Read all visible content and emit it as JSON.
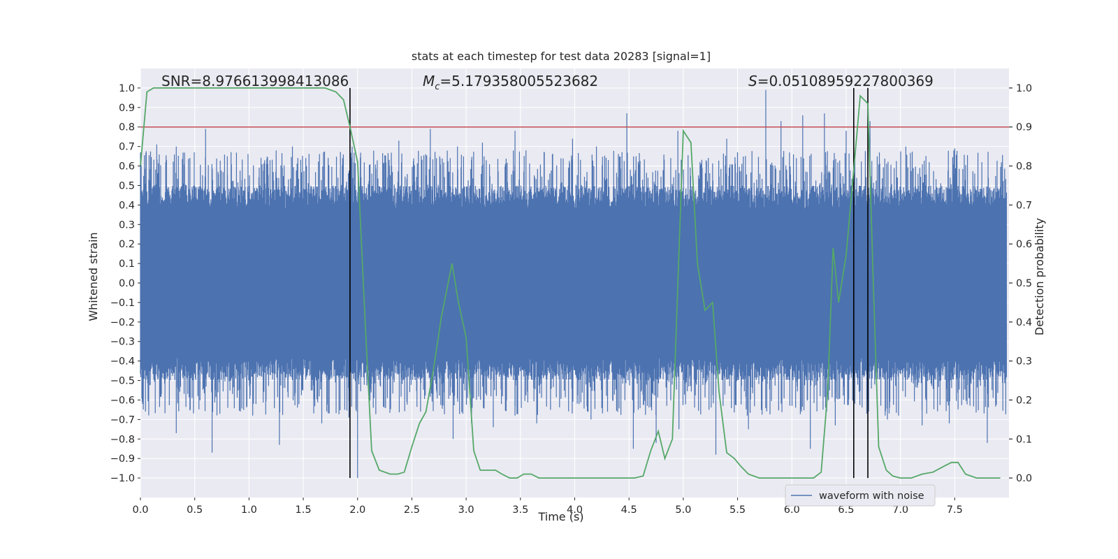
{
  "chart_data": {
    "type": "line",
    "title": "stats at each timestep for test data 20283 [signal=1]",
    "xlabel": "Time (s)",
    "ylabel": "Whitened strain",
    "y2label": "Detection probability",
    "xlim": [
      0.0,
      8.0
    ],
    "ylim": [
      -1.1,
      1.1
    ],
    "y2lim": [
      -0.05,
      1.05
    ],
    "xticks": [
      "0.0",
      "0.5",
      "1.0",
      "1.5",
      "2.0",
      "2.5",
      "3.0",
      "3.5",
      "4.0",
      "4.5",
      "5.0",
      "5.5",
      "6.0",
      "6.5",
      "7.0",
      "7.5"
    ],
    "yticks": [
      "1.0",
      "0.9",
      "0.8",
      "0.7",
      "0.6",
      "0.5",
      "0.4",
      "0.3",
      "0.2",
      "0.1",
      "0.0",
      "−0.1",
      "−0.2",
      "−0.3",
      "−0.4",
      "−0.5",
      "−0.6",
      "−0.7",
      "−0.8",
      "−0.9",
      "−1.0"
    ],
    "y2ticks": [
      "1.0",
      "0.9",
      "0.8",
      "0.7",
      "0.6",
      "0.5",
      "0.4",
      "0.3",
      "0.2",
      "0.1",
      "0.0"
    ],
    "annotations": {
      "snr": "SNR=8.976613998413086",
      "mc_symbol": "M",
      "mc_sub": "c",
      "mc_value": "=5.179358005523682",
      "s_symbol": "S",
      "s_value": "=0.05108959227800369"
    },
    "threshold": {
      "value": 0.8,
      "color": "#c44e52"
    },
    "vertical_lines": [
      1.93,
      6.57,
      6.7
    ],
    "legend": {
      "label": "waveform with noise",
      "position": "lower-right"
    },
    "colors": {
      "waveform": "#4c72b0",
      "probability": "#55a868",
      "threshold": "#c44e52",
      "vlines": "#000000",
      "background": "#eaeaf2",
      "grid": "#ffffff"
    },
    "waveform": {
      "name": "waveform with noise",
      "core_amplitude": 0.38,
      "peaks_upper": [
        [
          0.03,
          0.52
        ],
        [
          0.1,
          0.6
        ],
        [
          0.15,
          0.71
        ],
        [
          0.24,
          0.63
        ],
        [
          0.33,
          0.7
        ],
        [
          0.6,
          0.79
        ],
        [
          0.8,
          0.65
        ],
        [
          1.25,
          0.68
        ],
        [
          1.4,
          0.7
        ],
        [
          1.95,
          0.7
        ],
        [
          2.38,
          0.73
        ],
        [
          2.67,
          0.79
        ],
        [
          2.92,
          0.7
        ],
        [
          3.15,
          0.72
        ],
        [
          3.45,
          0.78
        ],
        [
          3.72,
          0.67
        ],
        [
          3.98,
          0.74
        ],
        [
          4.2,
          0.7
        ],
        [
          4.48,
          0.87
        ],
        [
          4.95,
          0.78
        ],
        [
          5.4,
          0.74
        ],
        [
          5.76,
          0.99
        ],
        [
          5.9,
          0.83
        ],
        [
          6.1,
          0.86
        ],
        [
          6.3,
          0.87
        ],
        [
          6.5,
          0.78
        ],
        [
          6.72,
          0.83
        ],
        [
          7.05,
          0.7
        ],
        [
          7.5,
          0.69
        ],
        [
          7.75,
          0.62
        ]
      ],
      "peaks_lower": [
        [
          0.02,
          -0.62
        ],
        [
          0.33,
          -0.77
        ],
        [
          0.66,
          -0.87
        ],
        [
          1.28,
          -0.83
        ],
        [
          1.67,
          -0.72
        ],
        [
          1.92,
          -0.69
        ],
        [
          2.0,
          -1.0
        ],
        [
          2.88,
          -0.8
        ],
        [
          3.05,
          -0.72
        ],
        [
          3.25,
          -0.74
        ],
        [
          3.45,
          -0.68
        ],
        [
          3.65,
          -0.72
        ],
        [
          4.15,
          -0.7
        ],
        [
          4.54,
          -0.85
        ],
        [
          4.75,
          -0.82
        ],
        [
          4.96,
          -0.75
        ],
        [
          5.3,
          -0.88
        ],
        [
          5.6,
          -0.75
        ],
        [
          6.17,
          -0.85
        ],
        [
          6.4,
          -0.73
        ],
        [
          6.69,
          -0.67
        ],
        [
          6.88,
          -0.7
        ],
        [
          7.2,
          -0.73
        ],
        [
          7.45,
          -0.72
        ],
        [
          7.8,
          -0.82
        ]
      ]
    },
    "probability": {
      "name": "detection probability",
      "x": [
        0.0,
        0.06,
        0.12,
        0.3,
        0.6,
        0.9,
        1.2,
        1.5,
        1.7,
        1.8,
        1.87,
        1.93,
        2.0,
        2.07,
        2.13,
        2.2,
        2.3,
        2.37,
        2.43,
        2.5,
        2.57,
        2.63,
        2.7,
        2.77,
        2.87,
        2.93,
        3.0,
        3.07,
        3.13,
        3.2,
        3.27,
        3.33,
        3.4,
        3.47,
        3.53,
        3.6,
        3.67,
        3.73,
        3.8,
        3.87,
        3.93,
        4.0,
        4.1,
        4.25,
        4.4,
        4.55,
        4.63,
        4.7,
        4.77,
        4.83,
        4.9,
        4.95,
        5.0,
        5.07,
        5.13,
        5.2,
        5.27,
        5.33,
        5.4,
        5.47,
        5.53,
        5.6,
        5.7,
        5.8,
        5.9,
        6.0,
        6.1,
        6.2,
        6.27,
        6.33,
        6.38,
        6.43,
        6.5,
        6.57,
        6.63,
        6.7,
        6.75,
        6.8,
        6.87,
        6.93,
        7.0,
        7.1,
        7.2,
        7.3,
        7.4,
        7.47,
        7.53,
        7.6,
        7.7,
        7.8,
        7.92
      ],
      "values": [
        0.8,
        0.99,
        1.0,
        1.0,
        1.0,
        1.0,
        1.0,
        1.0,
        1.0,
        0.99,
        0.97,
        0.9,
        0.81,
        0.4,
        0.07,
        0.02,
        0.01,
        0.01,
        0.015,
        0.08,
        0.14,
        0.17,
        0.28,
        0.41,
        0.55,
        0.45,
        0.36,
        0.07,
        0.02,
        0.02,
        0.02,
        0.01,
        0.0,
        0.0,
        0.01,
        0.01,
        0.0,
        0.0,
        0.0,
        0.0,
        0.0,
        0.0,
        0.0,
        0.0,
        0.0,
        0.0,
        0.005,
        0.07,
        0.12,
        0.05,
        0.1,
        0.5,
        0.89,
        0.86,
        0.55,
        0.43,
        0.45,
        0.22,
        0.065,
        0.05,
        0.03,
        0.01,
        0.0,
        0.0,
        0.0,
        0.0,
        0.0,
        0.0,
        0.015,
        0.22,
        0.59,
        0.45,
        0.57,
        0.79,
        0.98,
        0.96,
        0.5,
        0.08,
        0.02,
        0.005,
        0.0,
        0.0,
        0.01,
        0.015,
        0.03,
        0.04,
        0.04,
        0.01,
        0.0,
        0.0,
        0.0
      ]
    }
  }
}
